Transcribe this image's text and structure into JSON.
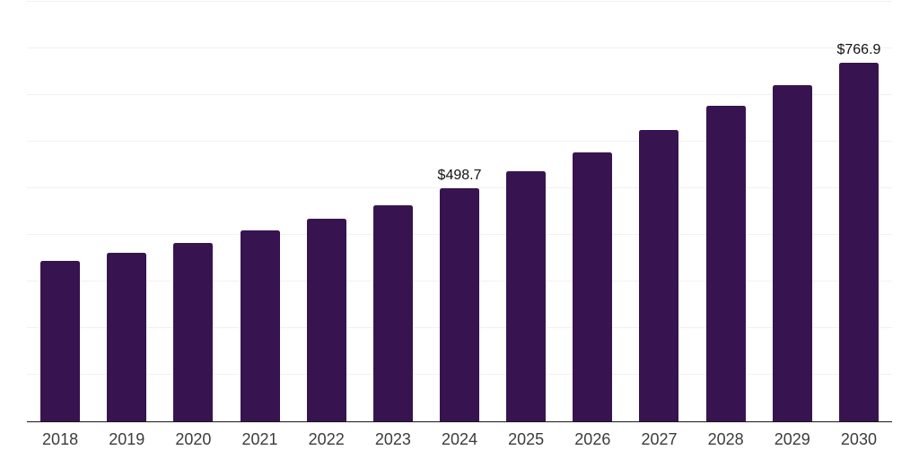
{
  "chart_data": {
    "type": "bar",
    "title": "",
    "xlabel": "",
    "ylabel": "",
    "categories": [
      "2018",
      "2019",
      "2020",
      "2021",
      "2022",
      "2023",
      "2024",
      "2025",
      "2026",
      "2027",
      "2028",
      "2029",
      "2030"
    ],
    "values": [
      343.5,
      361.0,
      382.0,
      408.5,
      433.0,
      463.5,
      498.7,
      535.5,
      576.5,
      623.0,
      675.0,
      719.5,
      766.9
    ],
    "point_labels": [
      "",
      "",
      "",
      "",
      "",
      "",
      "$498.7",
      "",
      "",
      "",
      "",
      "",
      "$766.9"
    ],
    "ylim": [
      0,
      900
    ],
    "grid_step": 100,
    "grid": "horizontal-only",
    "legend_position": "none",
    "y_axis_labels_visible": false,
    "colors": {
      "bar": "#371450",
      "grid_line": "#f1f1f2",
      "axis_line": "#1a1a1a",
      "tick_label": "#3c3c3c",
      "value_label": "#111111",
      "background": "#ffffff"
    }
  }
}
